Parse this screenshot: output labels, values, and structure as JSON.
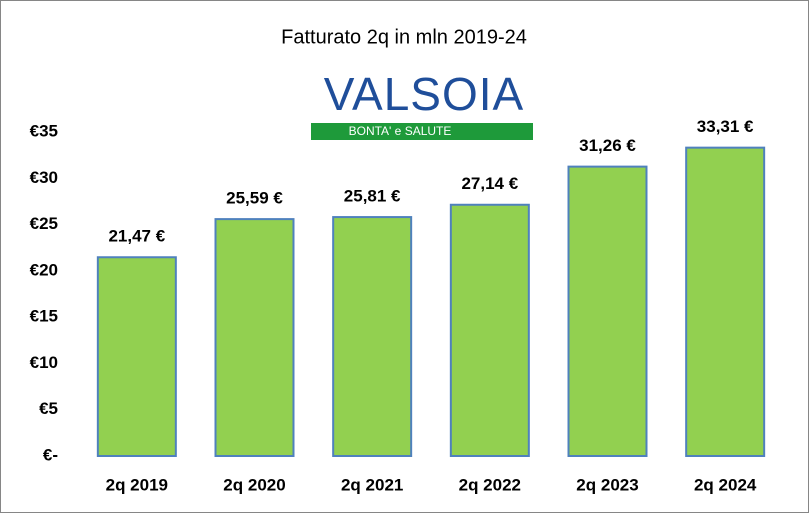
{
  "chart_data": {
    "type": "bar",
    "title": "Fatturato  2q  in  mln  2019-24",
    "logo": {
      "name": "VALSOIA",
      "tagline": "BONTA' e SALUTE"
    },
    "categories": [
      "2q 2019",
      "2q 2020",
      "2q 2021",
      "2q 2022",
      "2q 2023",
      "2q 2024"
    ],
    "values": [
      21.47,
      25.59,
      25.81,
      27.14,
      31.26,
      33.31
    ],
    "value_labels": [
      "21,47 €",
      "25,59 €",
      "25,81 €",
      "27,14 €",
      "31,26 €",
      "33,31 €"
    ],
    "color": "#92d050",
    "edge_color": "#4f81bd",
    "ylim": [
      0,
      35
    ],
    "yticks": [
      {
        "value": 0,
        "label": "€-"
      },
      {
        "value": 5,
        "label": "€5"
      },
      {
        "value": 10,
        "label": "€10"
      },
      {
        "value": 15,
        "label": "€15"
      },
      {
        "value": 20,
        "label": "€20"
      },
      {
        "value": 25,
        "label": "€25"
      },
      {
        "value": 30,
        "label": "€30"
      },
      {
        "value": 35,
        "label": "€35"
      }
    ],
    "grid": false
  }
}
